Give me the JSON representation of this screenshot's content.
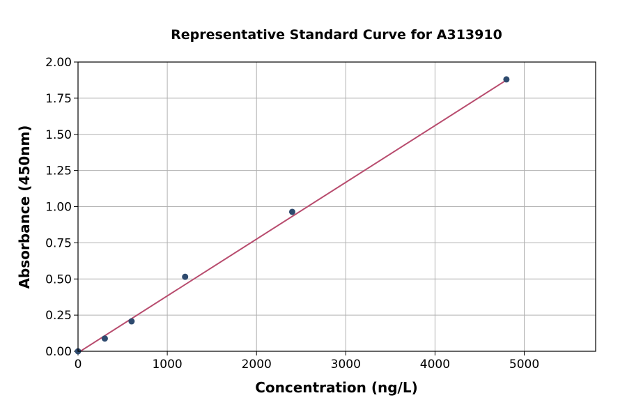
{
  "chart_data": {
    "type": "scatter",
    "title": "Representative Standard Curve for A313910",
    "xlabel": "Concentration (ng/L)",
    "ylabel": "Absorbance (450nm)",
    "xlim": [
      0,
      5800
    ],
    "ylim": [
      0,
      2.0
    ],
    "xticks": [
      0,
      1000,
      2000,
      3000,
      4000,
      5000
    ],
    "xtick_labels": [
      "0",
      "1000",
      "2000",
      "3000",
      "4000",
      "5000"
    ],
    "yticks": [
      0,
      0.25,
      0.5,
      0.75,
      1.0,
      1.25,
      1.5,
      1.75,
      2.0
    ],
    "ytick_labels": [
      "0.00",
      "0.25",
      "0.50",
      "0.75",
      "1.00",
      "1.25",
      "1.50",
      "1.75",
      "2.00"
    ],
    "grid": true,
    "series": [
      {
        "name": "Standards",
        "type": "scatter",
        "x": [
          0,
          300,
          600,
          1200,
          2400,
          4800
        ],
        "y": [
          0.0,
          0.088,
          0.207,
          0.515,
          0.964,
          1.88
        ],
        "color": "#2e4a6e"
      },
      {
        "name": "Fit",
        "type": "line",
        "x": [
          0,
          4800
        ],
        "y": [
          -0.01,
          1.875
        ],
        "color": "#b84c6e"
      }
    ]
  }
}
